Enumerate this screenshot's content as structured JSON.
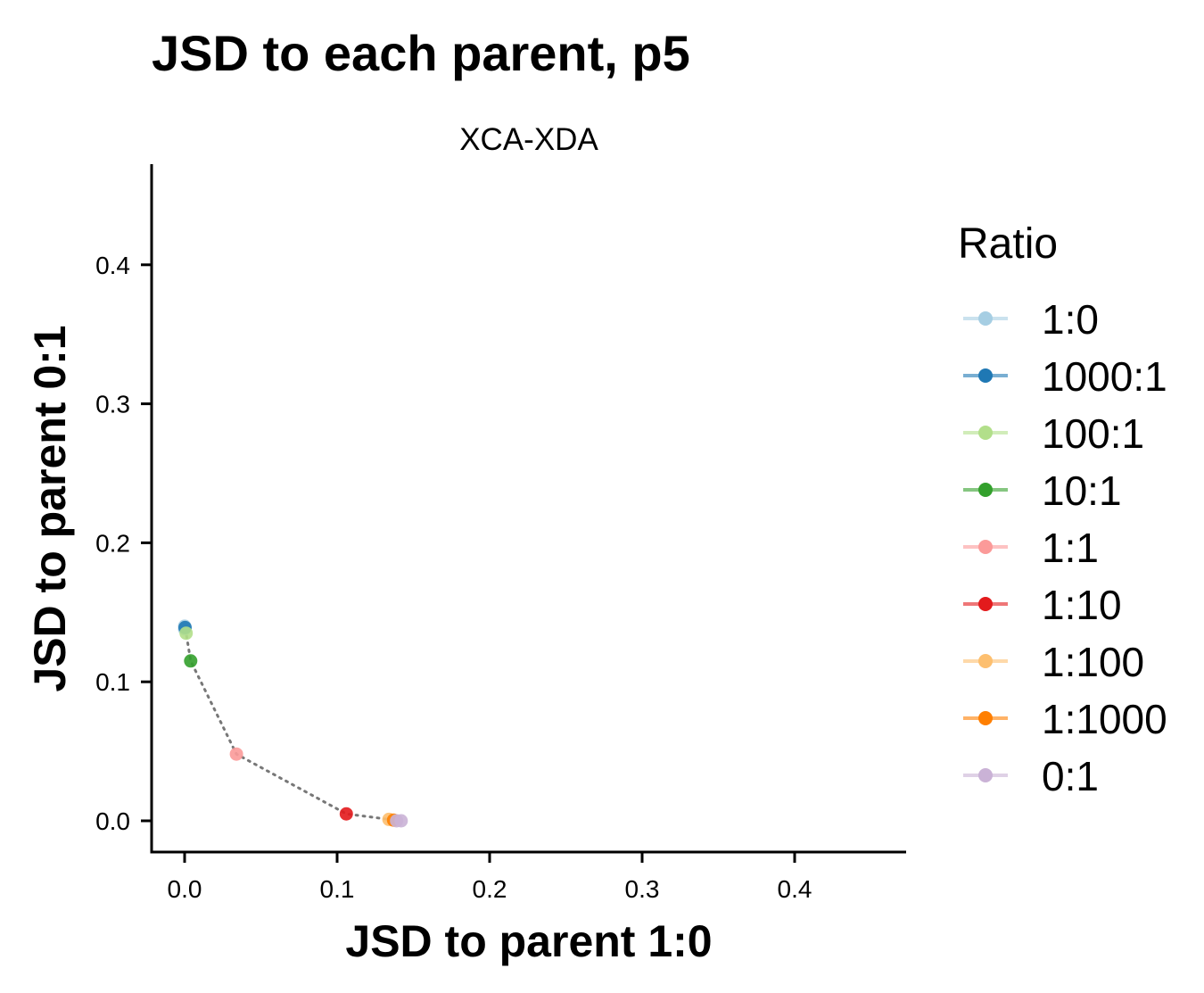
{
  "chart_data": {
    "type": "scatter",
    "title": "JSD to each parent, p5",
    "facet_label": "XCA-XDA",
    "xlabel": "JSD to parent 1:0",
    "ylabel": "JSD to parent 0:1",
    "xlim": [
      -0.022,
      0.47
    ],
    "ylim": [
      -0.022,
      0.47
    ],
    "xticks": [
      0.0,
      0.1,
      0.2,
      0.3,
      0.4
    ],
    "yticks": [
      0.0,
      0.1,
      0.2,
      0.3,
      0.4
    ],
    "xtick_labels": [
      "0.0",
      "0.1",
      "0.2",
      "0.3",
      "0.4"
    ],
    "ytick_labels": [
      "0.0",
      "0.1",
      "0.2",
      "0.3",
      "0.4"
    ],
    "grid": false,
    "legend": {
      "title": "Ratio",
      "position": "right"
    },
    "series": [
      {
        "name": "1:0",
        "color": "#A6CEE3",
        "points": [
          [
            0.0,
            0.14
          ],
          [
            0.0,
            0.138
          ]
        ]
      },
      {
        "name": "1000:1",
        "color": "#1F78B4",
        "points": [
          [
            0.0003,
            0.139
          ]
        ]
      },
      {
        "name": "100:1",
        "color": "#B2DF8A",
        "points": [
          [
            0.001,
            0.135
          ]
        ]
      },
      {
        "name": "10:1",
        "color": "#33A02C",
        "points": [
          [
            0.004,
            0.115
          ]
        ]
      },
      {
        "name": "1:1",
        "color": "#FB9A99",
        "points": [
          [
            0.034,
            0.048
          ]
        ]
      },
      {
        "name": "1:10",
        "color": "#E31A1C",
        "points": [
          [
            0.106,
            0.005
          ]
        ]
      },
      {
        "name": "1:100",
        "color": "#FDBF6F",
        "points": [
          [
            0.134,
            0.001
          ]
        ]
      },
      {
        "name": "1:1000",
        "color": "#FF7F00",
        "points": [
          [
            0.137,
            0.0005
          ]
        ]
      },
      {
        "name": "0:1",
        "color": "#CAB2D6",
        "points": [
          [
            0.139,
            0.0
          ],
          [
            0.142,
            0.0
          ]
        ]
      }
    ],
    "trend_line": {
      "style": "dotted",
      "color": "#777777",
      "points": [
        [
          0.0,
          0.138
        ],
        [
          0.001,
          0.135
        ],
        [
          0.004,
          0.115
        ],
        [
          0.034,
          0.048
        ],
        [
          0.106,
          0.005
        ],
        [
          0.134,
          0.001
        ],
        [
          0.139,
          0.0
        ]
      ]
    }
  }
}
